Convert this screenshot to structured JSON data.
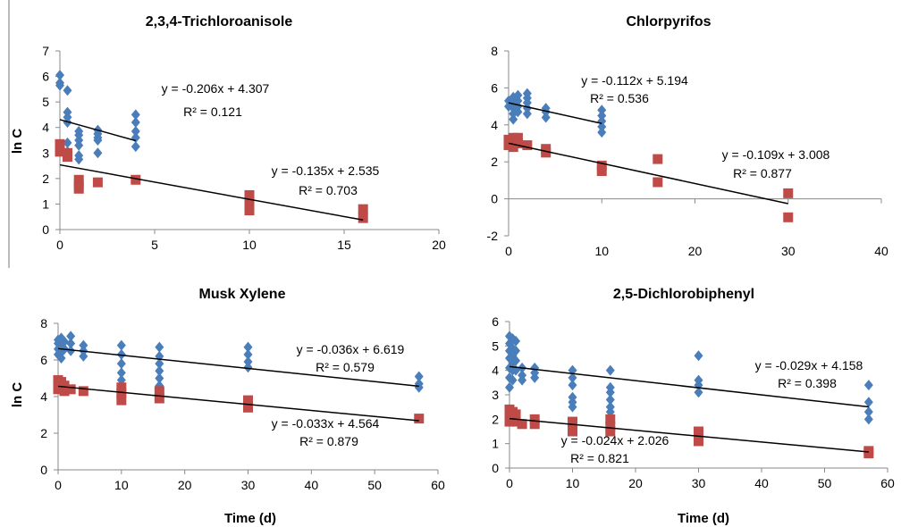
{
  "shared": {
    "ylabel": "ln C",
    "xlabel": "Time (d)"
  },
  "colors": {
    "series_blue": "#4a7ebb",
    "series_red": "#be4b48",
    "trendline": "#000000",
    "axis": "#888888"
  },
  "chart_data": [
    {
      "type": "scatter",
      "title": "2,3,4-Trichloroanisole",
      "xlabel": "",
      "ylabel": "ln C",
      "xlim": [
        0,
        20
      ],
      "ylim": [
        0,
        7
      ],
      "xticks": [
        0,
        5,
        10,
        15,
        20
      ],
      "yticks": [
        0,
        1,
        2,
        3,
        4,
        5,
        6,
        7
      ],
      "xtick_labels": [
        "0",
        "5",
        "10",
        "15",
        "20"
      ],
      "ytick_labels": [
        "0",
        "1",
        "2",
        "3",
        "4",
        "5",
        "6",
        "7"
      ],
      "series": [
        {
          "color": "blue",
          "marker": "diamond",
          "points": [
            [
              0,
              6.05
            ],
            [
              0,
              5.75
            ],
            [
              0,
              5.65
            ],
            [
              0.4,
              5.45
            ],
            [
              0.4,
              4.6
            ],
            [
              0.4,
              4.4
            ],
            [
              0.4,
              4.2
            ],
            [
              0.4,
              3.4
            ],
            [
              0.4,
              3.05
            ],
            [
              1,
              3.85
            ],
            [
              1,
              3.7
            ],
            [
              1,
              3.5
            ],
            [
              1,
              3.3
            ],
            [
              1,
              2.9
            ],
            [
              1,
              2.75
            ],
            [
              2,
              3.9
            ],
            [
              2,
              3.75
            ],
            [
              2,
              3.6
            ],
            [
              2,
              3.5
            ],
            [
              2,
              3.0
            ],
            [
              4,
              4.5
            ],
            [
              4,
              4.2
            ],
            [
              4,
              3.85
            ],
            [
              4,
              3.6
            ],
            [
              4,
              3.25
            ]
          ],
          "trendline": {
            "slope": -0.206,
            "intercept": 4.307,
            "x_range": [
              0,
              4
            ],
            "equation": "y = -0.206x + 4.307",
            "r2": "R² = 0.121"
          }
        },
        {
          "color": "red",
          "marker": "square",
          "points": [
            [
              0,
              3.35
            ],
            [
              0,
              3.2
            ],
            [
              0,
              3.05
            ],
            [
              0.4,
              3.0
            ],
            [
              0.4,
              2.85
            ],
            [
              1,
              1.95
            ],
            [
              1,
              1.75
            ],
            [
              1,
              1.6
            ],
            [
              2,
              1.85
            ],
            [
              4,
              1.95
            ],
            [
              10,
              1.35
            ],
            [
              10,
              1.05
            ],
            [
              10,
              0.75
            ],
            [
              16,
              0.8
            ],
            [
              16,
              0.45
            ]
          ],
          "trendline": {
            "slope": -0.135,
            "intercept": 2.535,
            "x_range": [
              0,
              16
            ],
            "equation": "y = -0.135x + 2.535",
            "r2": "R² = 0.703"
          }
        }
      ]
    },
    {
      "type": "scatter",
      "title": "Chlorpyrifos",
      "xlabel": "",
      "ylabel": "",
      "xlim": [
        0,
        40
      ],
      "ylim": [
        -2,
        8
      ],
      "xticks": [
        0,
        10,
        20,
        30,
        40
      ],
      "yticks": [
        -2,
        0,
        2,
        4,
        6,
        8
      ],
      "xtick_labels": [
        "0",
        "10",
        "20",
        "30",
        "40"
      ],
      "ytick_labels": [
        "-2",
        "0",
        "2",
        "4",
        "6",
        "8"
      ],
      "series": [
        {
          "color": "blue",
          "marker": "diamond",
          "points": [
            [
              0,
              5.3
            ],
            [
              0,
              5.0
            ],
            [
              0.5,
              5.5
            ],
            [
              0.5,
              5.4
            ],
            [
              0.5,
              5.2
            ],
            [
              0.5,
              4.9
            ],
            [
              0.5,
              4.6
            ],
            [
              0.5,
              4.3
            ],
            [
              1,
              5.6
            ],
            [
              1,
              5.3
            ],
            [
              1,
              5.0
            ],
            [
              1,
              4.7
            ],
            [
              2,
              5.7
            ],
            [
              2,
              5.45
            ],
            [
              2,
              5.2
            ],
            [
              2,
              4.9
            ],
            [
              2,
              4.6
            ],
            [
              4,
              4.9
            ],
            [
              4,
              4.7
            ],
            [
              4,
              4.4
            ],
            [
              10,
              4.8
            ],
            [
              10,
              4.5
            ],
            [
              10,
              4.2
            ],
            [
              10,
              3.9
            ],
            [
              10,
              3.6
            ]
          ],
          "trendline": {
            "slope": -0.112,
            "intercept": 5.194,
            "x_range": [
              0,
              10
            ],
            "equation": "y = -0.112x + 5.194",
            "r2": "R² = 0.536"
          }
        },
        {
          "color": "red",
          "marker": "square",
          "points": [
            [
              0,
              3.2
            ],
            [
              0,
              2.9
            ],
            [
              0.5,
              3.3
            ],
            [
              0.5,
              3.1
            ],
            [
              0.5,
              2.8
            ],
            [
              1,
              3.3
            ],
            [
              1,
              3.0
            ],
            [
              2,
              2.9
            ],
            [
              4,
              2.7
            ],
            [
              4,
              2.5
            ],
            [
              10,
              1.8
            ],
            [
              10,
              1.5
            ],
            [
              16,
              2.15
            ],
            [
              16,
              0.9
            ],
            [
              30,
              0.3
            ],
            [
              30,
              -1.0
            ]
          ],
          "trendline": {
            "slope": -0.109,
            "intercept": 3.008,
            "x_range": [
              0,
              30
            ],
            "equation": "y = -0.109x + 3.008",
            "r2": "R² = 0.877"
          }
        }
      ]
    },
    {
      "type": "scatter",
      "title": "Musk Xylene",
      "xlabel": "Time (d)",
      "ylabel": "ln C",
      "xlim": [
        0,
        60
      ],
      "ylim": [
        0,
        8
      ],
      "xticks": [
        0,
        10,
        20,
        30,
        40,
        50,
        60
      ],
      "yticks": [
        0,
        2,
        4,
        6,
        8
      ],
      "xtick_labels": [
        "0",
        "10",
        "20",
        "30",
        "40",
        "50",
        "60"
      ],
      "ytick_labels": [
        "0",
        "2",
        "4",
        "6",
        "8"
      ],
      "series": [
        {
          "color": "blue",
          "marker": "diamond",
          "points": [
            [
              0,
              7.1
            ],
            [
              0,
              6.9
            ],
            [
              0,
              6.6
            ],
            [
              0,
              6.3
            ],
            [
              0.5,
              7.2
            ],
            [
              0.5,
              6.8
            ],
            [
              0.5,
              6.4
            ],
            [
              0.5,
              6.1
            ],
            [
              1,
              7.0
            ],
            [
              1,
              6.6
            ],
            [
              2,
              7.3
            ],
            [
              2,
              6.9
            ],
            [
              2,
              6.5
            ],
            [
              4,
              6.8
            ],
            [
              4,
              6.5
            ],
            [
              4,
              6.2
            ],
            [
              10,
              6.8
            ],
            [
              10,
              6.3
            ],
            [
              10,
              5.8
            ],
            [
              10,
              5.3
            ],
            [
              10,
              4.9
            ],
            [
              16,
              6.7
            ],
            [
              16,
              6.2
            ],
            [
              16,
              5.8
            ],
            [
              16,
              5.4
            ],
            [
              16,
              5.0
            ],
            [
              16,
              4.6
            ],
            [
              30,
              6.7
            ],
            [
              30,
              6.3
            ],
            [
              30,
              5.9
            ],
            [
              30,
              5.6
            ],
            [
              57,
              5.1
            ],
            [
              57,
              4.7
            ],
            [
              57,
              4.5
            ]
          ],
          "trendline": {
            "slope": -0.036,
            "intercept": 6.619,
            "x_range": [
              0,
              57
            ],
            "equation": "y = -0.036x + 6.619",
            "r2": "R² = 0.579"
          }
        },
        {
          "color": "red",
          "marker": "square",
          "points": [
            [
              0,
              4.9
            ],
            [
              0,
              4.6
            ],
            [
              0,
              4.4
            ],
            [
              0.5,
              4.8
            ],
            [
              0.5,
              4.5
            ],
            [
              1,
              4.6
            ],
            [
              1,
              4.3
            ],
            [
              2,
              4.4
            ],
            [
              4,
              4.3
            ],
            [
              10,
              4.5
            ],
            [
              10,
              4.2
            ],
            [
              10,
              3.8
            ],
            [
              16,
              4.3
            ],
            [
              16,
              3.9
            ],
            [
              30,
              3.8
            ],
            [
              30,
              3.4
            ],
            [
              57,
              2.8
            ]
          ],
          "trendline": {
            "slope": -0.033,
            "intercept": 4.564,
            "x_range": [
              0,
              57
            ],
            "equation": "y = -0.033x + 4.564",
            "r2": "R² = 0.879"
          }
        }
      ]
    },
    {
      "type": "scatter",
      "title": "2,5-Dichlorobiphenyl",
      "xlabel": "Time (d)",
      "ylabel": "",
      "xlim": [
        0,
        60
      ],
      "ylim": [
        0,
        6
      ],
      "xticks": [
        0,
        10,
        20,
        30,
        40,
        50,
        60
      ],
      "yticks": [
        0,
        1,
        2,
        3,
        4,
        5,
        6
      ],
      "xtick_labels": [
        "0",
        "10",
        "20",
        "30",
        "40",
        "50",
        "60"
      ],
      "ytick_labels": [
        "0",
        "1",
        "2",
        "3",
        "4",
        "5",
        "6"
      ],
      "series": [
        {
          "color": "blue",
          "marker": "diamond",
          "points": [
            [
              0,
              5.4
            ],
            [
              0,
              5.1
            ],
            [
              0,
              4.8
            ],
            [
              0,
              4.5
            ],
            [
              0,
              4.1
            ],
            [
              0,
              3.7
            ],
            [
              0,
              3.3
            ],
            [
              0.5,
              5.3
            ],
            [
              0.5,
              4.9
            ],
            [
              0.5,
              4.6
            ],
            [
              0.5,
              4.3
            ],
            [
              0.5,
              4.0
            ],
            [
              0.5,
              3.6
            ],
            [
              1,
              5.2
            ],
            [
              1,
              4.8
            ],
            [
              1,
              4.4
            ],
            [
              1,
              4.0
            ],
            [
              2,
              4.1
            ],
            [
              2,
              3.8
            ],
            [
              2,
              3.6
            ],
            [
              4,
              4.1
            ],
            [
              4,
              3.9
            ],
            [
              4,
              3.7
            ],
            [
              10,
              4.0
            ],
            [
              10,
              3.7
            ],
            [
              10,
              3.4
            ],
            [
              10,
              2.9
            ],
            [
              10,
              2.7
            ],
            [
              10,
              2.5
            ],
            [
              16,
              4.0
            ],
            [
              16,
              3.3
            ],
            [
              16,
              3.1
            ],
            [
              16,
              2.8
            ],
            [
              16,
              2.5
            ],
            [
              16,
              2.3
            ],
            [
              30,
              4.6
            ],
            [
              30,
              3.6
            ],
            [
              30,
              3.4
            ],
            [
              30,
              3.1
            ],
            [
              57,
              3.4
            ],
            [
              57,
              2.7
            ],
            [
              57,
              2.3
            ],
            [
              57,
              2.0
            ]
          ],
          "trendline": {
            "slope": -0.029,
            "intercept": 4.158,
            "x_range": [
              0,
              57
            ],
            "equation": "y = -0.029x + 4.158",
            "r2": "R² = 0.398"
          }
        },
        {
          "color": "red",
          "marker": "square",
          "points": [
            [
              0,
              2.4
            ],
            [
              0,
              2.1
            ],
            [
              0,
              1.9
            ],
            [
              0.5,
              2.3
            ],
            [
              0.5,
              2.0
            ],
            [
              1,
              2.2
            ],
            [
              1,
              1.9
            ],
            [
              2,
              1.8
            ],
            [
              4,
              2.0
            ],
            [
              4,
              1.8
            ],
            [
              10,
              1.9
            ],
            [
              10,
              1.7
            ],
            [
              10,
              1.5
            ],
            [
              16,
              2.0
            ],
            [
              16,
              1.7
            ],
            [
              16,
              1.5
            ],
            [
              30,
              1.5
            ],
            [
              30,
              1.3
            ],
            [
              30,
              1.1
            ],
            [
              57,
              0.7
            ],
            [
              57,
              0.6
            ]
          ],
          "trendline": {
            "slope": -0.024,
            "intercept": 2.026,
            "x_range": [
              0,
              57
            ],
            "equation": "y = -0.024x + 2.026",
            "r2": "R² = 0.821"
          }
        }
      ]
    }
  ]
}
